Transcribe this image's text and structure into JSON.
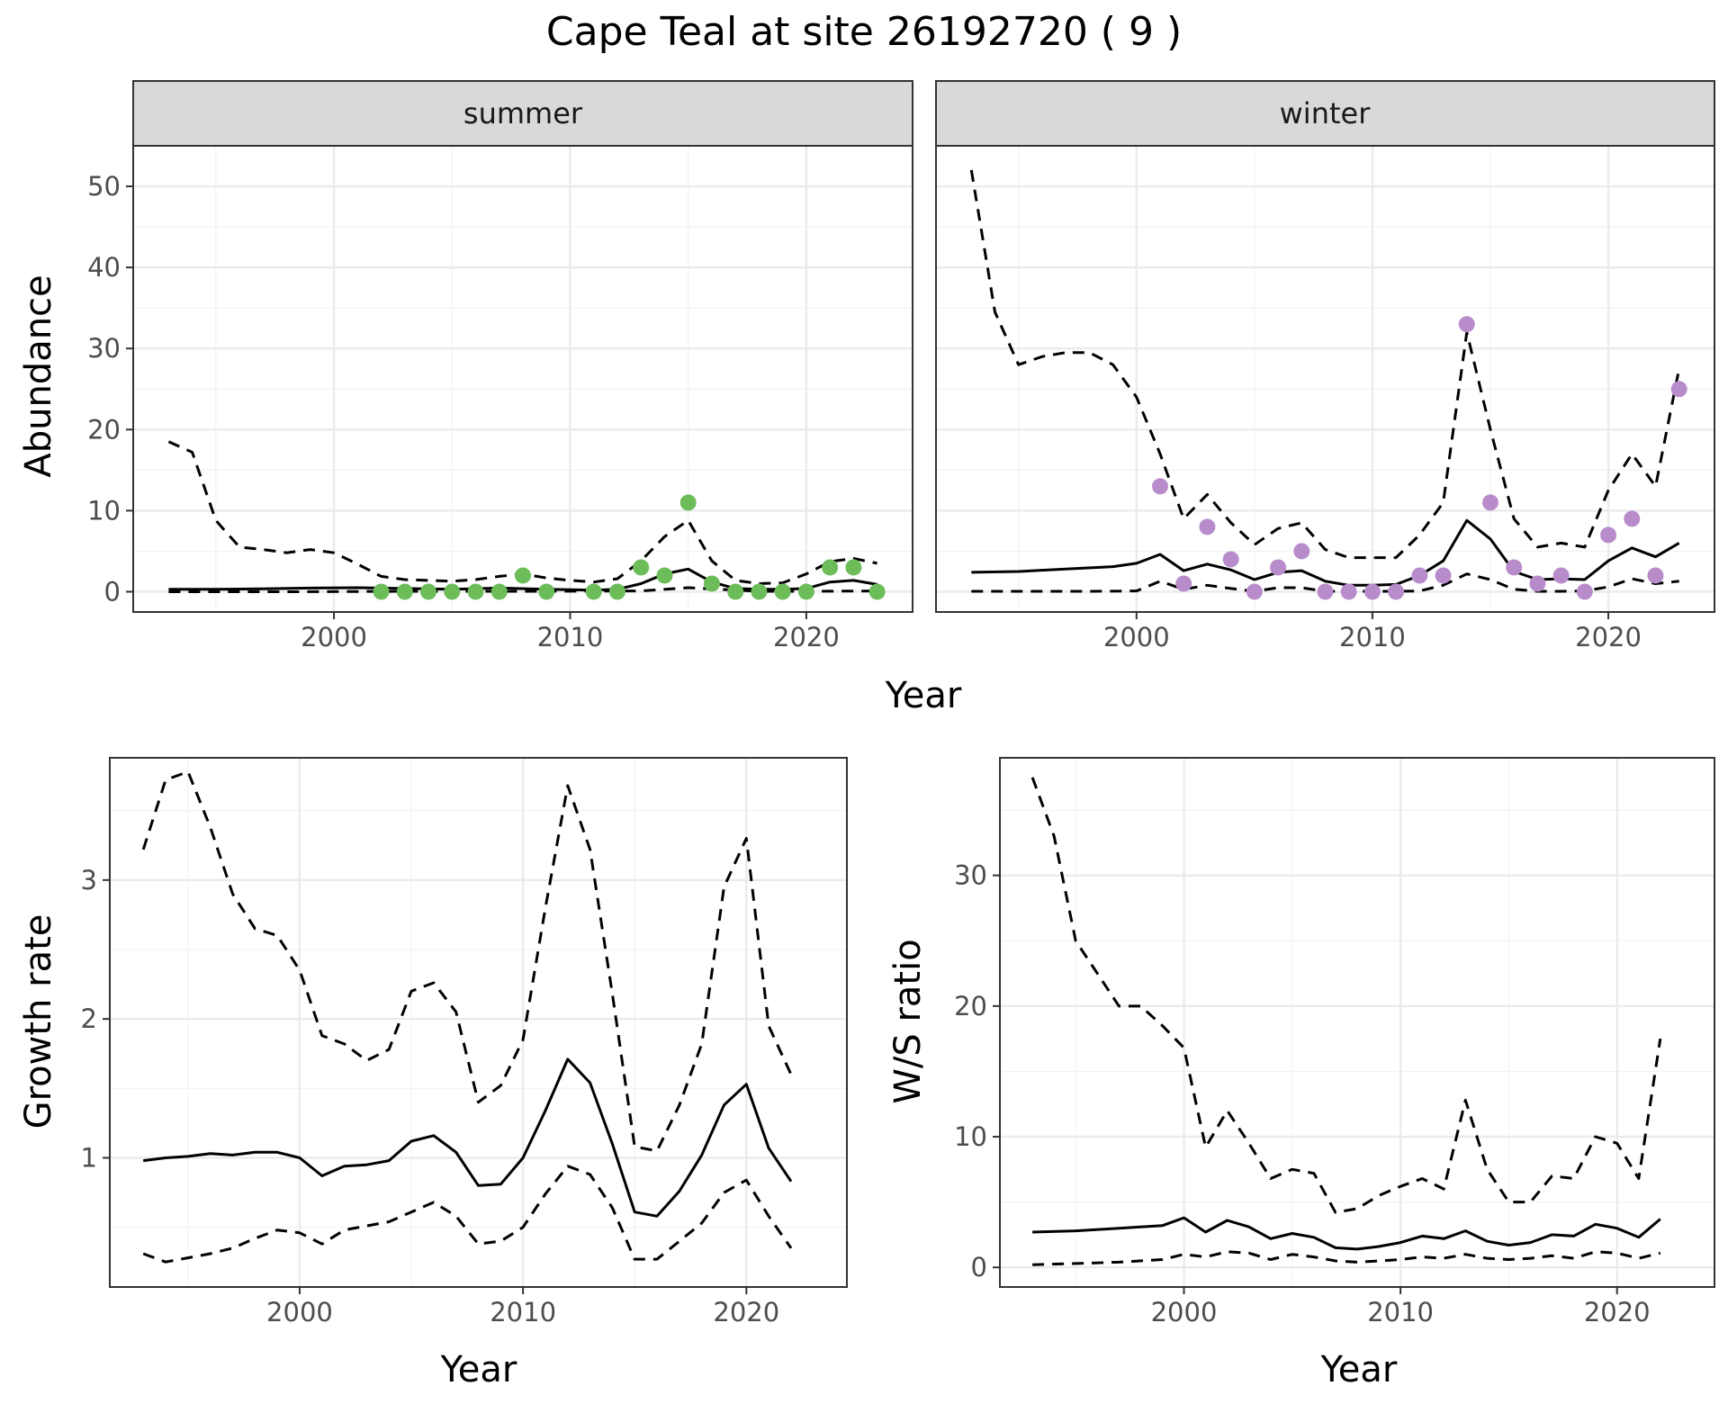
{
  "figure": {
    "title": "Cape Teal at site 26192720 ( 9 )"
  },
  "colors": {
    "summer_points": "#6cbd5a",
    "winter_points": "#b88ccb",
    "lines": "#000000",
    "strip_fill": "#d9d9d9"
  },
  "chart_data": [
    {
      "type": "line",
      "panel": "summer",
      "facet_label": "summer",
      "ylabel": "Abundance",
      "xlabel": "Year",
      "xlim": [
        1991.5,
        2024.5
      ],
      "ylim": [
        -2.5,
        55
      ],
      "x_ticks": [
        2000,
        2010,
        2020
      ],
      "y_ticks": [
        0,
        10,
        20,
        30,
        40,
        50
      ],
      "grid": true,
      "series": [
        {
          "role": "estimate",
          "style": "solid",
          "x": [
            1993,
            1995,
            1997,
            1999,
            2001,
            2003,
            2005,
            2007,
            2009,
            2011,
            2012,
            2013,
            2014,
            2015,
            2016,
            2017,
            2018,
            2019,
            2020,
            2021,
            2022,
            2023
          ],
          "y": [
            0.3,
            0.3,
            0.35,
            0.45,
            0.5,
            0.4,
            0.3,
            0.45,
            0.3,
            0.2,
            0.3,
            1.0,
            2.2,
            2.8,
            1.2,
            0.4,
            0.3,
            0.3,
            0.4,
            1.2,
            1.4,
            0.9
          ]
        },
        {
          "role": "lower",
          "style": "dashed",
          "x": [
            1993,
            1998,
            2003,
            2008,
            2013,
            2015,
            2018,
            2020,
            2023
          ],
          "y": [
            0.0,
            0.0,
            0.05,
            0.05,
            0.1,
            0.5,
            0.05,
            0.05,
            0.1
          ]
        },
        {
          "role": "upper",
          "style": "dashed",
          "x": [
            1993,
            1994,
            1995,
            1996,
            1997,
            1998,
            1999,
            2000,
            2001,
            2002,
            2003,
            2004,
            2005,
            2006,
            2007,
            2008,
            2009,
            2010,
            2011,
            2012,
            2013,
            2014,
            2015,
            2016,
            2017,
            2018,
            2019,
            2020,
            2021,
            2022,
            2023
          ],
          "y": [
            18.5,
            17.2,
            8.8,
            5.5,
            5.2,
            4.8,
            5.2,
            4.8,
            3.4,
            1.9,
            1.5,
            1.4,
            1.3,
            1.5,
            1.9,
            2.2,
            1.7,
            1.4,
            1.2,
            1.6,
            3.8,
            6.8,
            8.8,
            3.8,
            1.4,
            1.0,
            1.1,
            2.2,
            3.7,
            4.1,
            3.5
          ]
        }
      ],
      "points": {
        "x": [
          2002,
          2003,
          2004,
          2005,
          2006,
          2007,
          2008,
          2009,
          2011,
          2012,
          2013,
          2014,
          2015,
          2016,
          2017,
          2018,
          2019,
          2020,
          2021,
          2022,
          2023
        ],
        "y": [
          0,
          0,
          0,
          0,
          0,
          0,
          2,
          0,
          0,
          0,
          3,
          2,
          11,
          1,
          0,
          0,
          0,
          0,
          3,
          3,
          0
        ]
      }
    },
    {
      "type": "line",
      "panel": "winter",
      "facet_label": "winter",
      "ylabel": "Abundance",
      "xlabel": "Year",
      "xlim": [
        1991.5,
        2024.5
      ],
      "ylim": [
        -2.5,
        55
      ],
      "x_ticks": [
        2000,
        2010,
        2020
      ],
      "y_ticks": [
        0,
        10,
        20,
        30,
        40,
        50
      ],
      "grid": true,
      "series": [
        {
          "role": "estimate",
          "style": "solid",
          "x": [
            1993,
            1995,
            1997,
            1999,
            2000,
            2001,
            2002,
            2003,
            2004,
            2005,
            2006,
            2007,
            2008,
            2009,
            2010,
            2011,
            2012,
            2013,
            2014,
            2015,
            2016,
            2017,
            2018,
            2019,
            2020,
            2021,
            2022,
            2023
          ],
          "y": [
            2.4,
            2.5,
            2.8,
            3.1,
            3.5,
            4.6,
            2.6,
            3.4,
            2.7,
            1.5,
            2.4,
            2.6,
            1.3,
            0.8,
            0.8,
            0.9,
            2.0,
            3.8,
            8.8,
            6.5,
            2.5,
            1.5,
            1.6,
            1.5,
            3.8,
            5.4,
            4.3,
            6.0
          ]
        },
        {
          "role": "lower",
          "style": "dashed",
          "x": [
            1993,
            1995,
            1998,
            2000,
            2001,
            2002,
            2003,
            2004,
            2005,
            2006,
            2007,
            2008,
            2009,
            2010,
            2011,
            2012,
            2013,
            2014,
            2015,
            2016,
            2017,
            2018,
            2019,
            2020,
            2021,
            2022,
            2023
          ],
          "y": [
            0.05,
            0.05,
            0.05,
            0.1,
            1.3,
            0.3,
            0.8,
            0.4,
            0.05,
            0.5,
            0.5,
            0.05,
            0.05,
            0.05,
            0.05,
            0.1,
            0.8,
            2.2,
            1.5,
            0.3,
            0.05,
            0.05,
            0.1,
            0.6,
            1.6,
            1.0,
            1.3
          ]
        },
        {
          "role": "upper",
          "style": "dashed",
          "x": [
            1993,
            1994,
            1995,
            1996,
            1997,
            1998,
            1999,
            2000,
            2001,
            2002,
            2003,
            2004,
            2005,
            2006,
            2007,
            2008,
            2009,
            2010,
            2011,
            2012,
            2013,
            2014,
            2015,
            2016,
            2017,
            2018,
            2019,
            2020,
            2021,
            2022,
            2023
          ],
          "y": [
            52,
            34.5,
            28,
            29,
            29.5,
            29.5,
            28,
            24,
            17,
            9,
            12,
            8.5,
            5.8,
            7.8,
            8.5,
            5.2,
            4.2,
            4.2,
            4.2,
            7.0,
            11,
            32,
            20,
            9,
            5.5,
            6.0,
            5.5,
            12.5,
            17,
            13,
            27.5
          ]
        }
      ],
      "points": {
        "x": [
          2001,
          2002,
          2003,
          2004,
          2005,
          2006,
          2007,
          2008,
          2009,
          2010,
          2011,
          2012,
          2013,
          2014,
          2015,
          2016,
          2017,
          2018,
          2019,
          2020,
          2021,
          2022,
          2023
        ],
        "y": [
          13,
          1,
          8,
          4,
          0,
          3,
          5,
          0,
          0,
          0,
          0,
          2,
          2,
          33,
          11,
          3,
          1,
          2,
          0,
          7,
          9,
          2,
          25
        ]
      }
    },
    {
      "type": "line",
      "panel": "growth",
      "ylabel": "Growth rate",
      "xlabel": "Year",
      "xlim": [
        1991.5,
        2024.5
      ],
      "ylim": [
        0.07,
        3.88
      ],
      "x_ticks": [
        2000,
        2010,
        2020
      ],
      "y_ticks": [
        1,
        2,
        3
      ],
      "grid": true,
      "series": [
        {
          "role": "estimate",
          "style": "solid",
          "x": [
            1993,
            1994,
            1995,
            1996,
            1997,
            1998,
            1999,
            2000,
            2001,
            2002,
            2003,
            2004,
            2005,
            2006,
            2007,
            2008,
            2009,
            2010,
            2011,
            2012,
            2013,
            2014,
            2015,
            2016,
            2017,
            2018,
            2019,
            2020,
            2021,
            2022
          ],
          "y": [
            0.98,
            1.0,
            1.01,
            1.03,
            1.02,
            1.04,
            1.04,
            1.0,
            0.87,
            0.94,
            0.95,
            0.98,
            1.12,
            1.16,
            1.04,
            0.8,
            0.81,
            1.0,
            1.34,
            1.71,
            1.54,
            1.1,
            0.61,
            0.58,
            0.76,
            1.02,
            1.38,
            1.53,
            1.07,
            0.83
          ]
        },
        {
          "role": "lower",
          "style": "dashed",
          "x": [
            1993,
            1994,
            1995,
            1996,
            1997,
            1998,
            1999,
            2000,
            2001,
            2002,
            2003,
            2004,
            2005,
            2006,
            2007,
            2008,
            2009,
            2010,
            2011,
            2012,
            2013,
            2014,
            2015,
            2016,
            2017,
            2018,
            2019,
            2020,
            2021,
            2022
          ],
          "y": [
            0.31,
            0.25,
            0.28,
            0.31,
            0.35,
            0.42,
            0.48,
            0.46,
            0.38,
            0.48,
            0.51,
            0.54,
            0.61,
            0.68,
            0.58,
            0.38,
            0.4,
            0.5,
            0.74,
            0.94,
            0.88,
            0.64,
            0.27,
            0.27,
            0.4,
            0.53,
            0.75,
            0.84,
            0.58,
            0.35
          ]
        },
        {
          "role": "upper",
          "style": "dashed",
          "x": [
            1993,
            1994,
            1995,
            1996,
            1997,
            1998,
            1999,
            2000,
            2001,
            2002,
            2003,
            2004,
            2005,
            2006,
            2007,
            2008,
            2009,
            2010,
            2011,
            2012,
            2013,
            2014,
            2015,
            2016,
            2017,
            2018,
            2019,
            2020,
            2021,
            2022
          ],
          "y": [
            3.22,
            3.72,
            3.78,
            3.38,
            2.9,
            2.65,
            2.6,
            2.35,
            1.88,
            1.82,
            1.7,
            1.78,
            2.2,
            2.26,
            2.05,
            1.4,
            1.52,
            1.85,
            2.8,
            3.68,
            3.22,
            2.18,
            1.08,
            1.05,
            1.38,
            1.82,
            2.95,
            3.3,
            1.95,
            1.6
          ]
        }
      ]
    },
    {
      "type": "line",
      "panel": "ratio",
      "ylabel": "W/S ratio",
      "xlabel": "Year",
      "xlim": [
        1991.5,
        2024.5
      ],
      "ylim": [
        -1.5,
        39
      ],
      "x_ticks": [
        2000,
        2010,
        2020
      ],
      "y_ticks": [
        0,
        10,
        20,
        30
      ],
      "grid": true,
      "series": [
        {
          "role": "estimate",
          "style": "solid",
          "x": [
            1993,
            1995,
            1997,
            1999,
            2000,
            2001,
            2002,
            2003,
            2004,
            2005,
            2006,
            2007,
            2008,
            2009,
            2010,
            2011,
            2012,
            2013,
            2014,
            2015,
            2016,
            2017,
            2018,
            2019,
            2020,
            2021,
            2022
          ],
          "y": [
            2.7,
            2.8,
            3.0,
            3.2,
            3.8,
            2.7,
            3.6,
            3.1,
            2.2,
            2.6,
            2.3,
            1.5,
            1.4,
            1.6,
            1.9,
            2.4,
            2.2,
            2.8,
            2.0,
            1.7,
            1.9,
            2.5,
            2.4,
            3.3,
            3.0,
            2.3,
            3.7
          ]
        },
        {
          "role": "lower",
          "style": "dashed",
          "x": [
            1993,
            1995,
            1997,
            1999,
            2000,
            2001,
            2002,
            2003,
            2004,
            2005,
            2006,
            2007,
            2008,
            2009,
            2010,
            2011,
            2012,
            2013,
            2014,
            2015,
            2016,
            2017,
            2018,
            2019,
            2020,
            2021,
            2022
          ],
          "y": [
            0.2,
            0.3,
            0.4,
            0.6,
            1.0,
            0.8,
            1.2,
            1.1,
            0.6,
            1.0,
            0.8,
            0.5,
            0.4,
            0.5,
            0.6,
            0.8,
            0.7,
            1.0,
            0.7,
            0.6,
            0.7,
            0.9,
            0.7,
            1.2,
            1.1,
            0.7,
            1.1
          ]
        },
        {
          "role": "upper",
          "style": "dashed",
          "x": [
            1993,
            1994,
            1995,
            1996,
            1997,
            1998,
            1999,
            2000,
            2001,
            2002,
            2003,
            2004,
            2005,
            2006,
            2007,
            2008,
            2009,
            2010,
            2011,
            2012,
            2013,
            2014,
            2015,
            2016,
            2017,
            2018,
            2019,
            2020,
            2021,
            2022
          ],
          "y": [
            37.5,
            33,
            25,
            22.5,
            20,
            20,
            18.5,
            16.8,
            9.2,
            12,
            9.5,
            6.8,
            7.5,
            7.2,
            4.2,
            4.5,
            5.5,
            6.2,
            6.8,
            6.0,
            12.8,
            7.5,
            5.0,
            5.0,
            7.0,
            6.8,
            10,
            9.5,
            6.8,
            17.5
          ]
        }
      ]
    }
  ]
}
